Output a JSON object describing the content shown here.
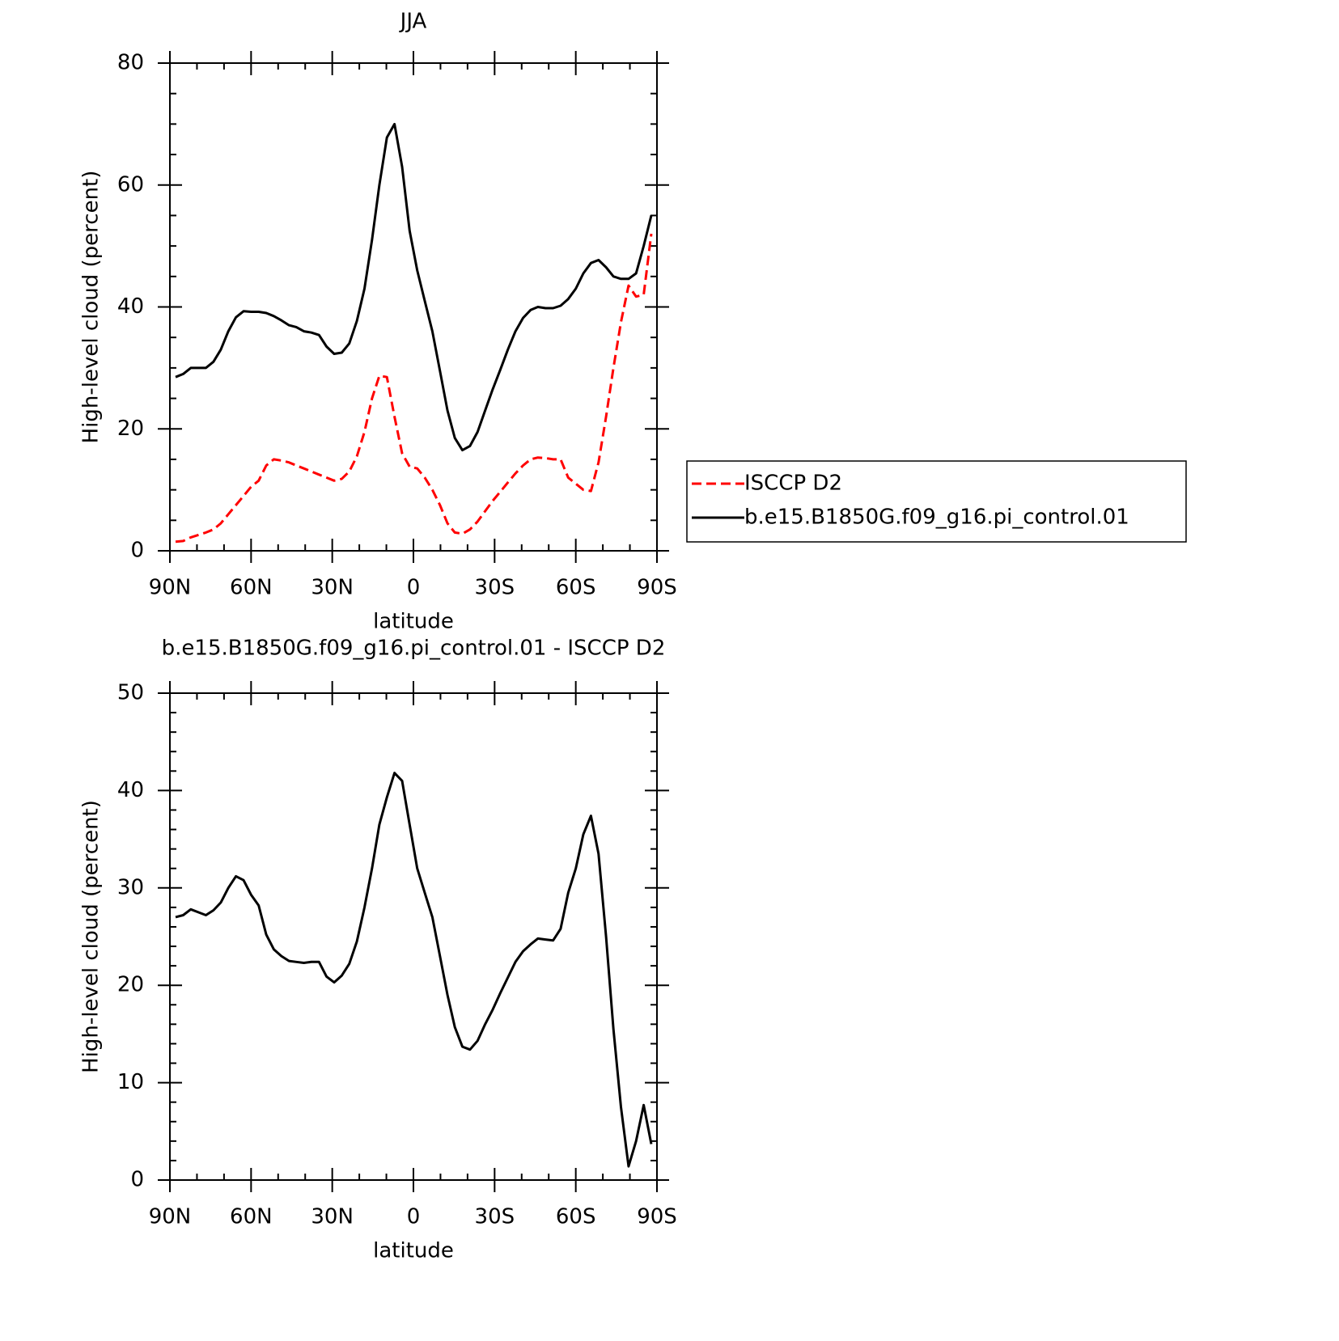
{
  "chart_data": [
    {
      "type": "line",
      "title": "JJA",
      "xlabel": "latitude",
      "ylabel": "High-level cloud (percent)",
      "x": [
        87.9,
        85.1,
        82.3,
        79.5,
        76.7,
        73.9,
        71.2,
        68.4,
        65.6,
        62.8,
        60.0,
        57.2,
        54.4,
        51.6,
        48.8,
        46.0,
        43.3,
        40.5,
        37.7,
        34.9,
        32.1,
        29.3,
        26.5,
        23.7,
        20.9,
        18.1,
        15.3,
        12.6,
        9.8,
        7.0,
        4.2,
        1.4,
        -1.4,
        -4.2,
        -7.0,
        -9.8,
        -12.6,
        -15.3,
        -18.1,
        -20.9,
        -23.7,
        -26.5,
        -29.3,
        -32.1,
        -34.9,
        -37.7,
        -40.5,
        -43.3,
        -46.0,
        -48.8,
        -51.6,
        -54.4,
        -57.2,
        -60.0,
        -62.8,
        -65.6,
        -68.4,
        -71.2,
        -73.9,
        -76.7,
        -79.5,
        -82.3,
        -85.1,
        -87.9
      ],
      "series": [
        {
          "name": "ISCCP D2",
          "color": "#ff0000",
          "style": "dashed",
          "values": [
            1.5,
            1.6,
            2.2,
            2.6,
            3,
            3.5,
            4.5,
            6,
            7.5,
            9,
            10.5,
            11.5,
            14,
            15,
            14.8,
            14.5,
            14,
            13.5,
            13,
            12.5,
            12,
            11.5,
            11.8,
            13,
            15.5,
            19.5,
            25,
            28.7,
            28.5,
            22,
            16,
            13.8,
            13.5,
            12,
            10,
            7.5,
            4.5,
            3,
            2.8,
            3.5,
            4.8,
            6.5,
            8.2,
            9.7,
            11.2,
            12.7,
            14,
            15,
            15.3,
            15.2,
            15,
            15,
            12,
            11,
            10,
            9.8,
            14.5,
            22,
            30,
            37.5,
            43.5,
            41.7,
            42,
            52
          ]
        },
        {
          "name": "b.e15.B1850G.f09_g16.pi_control.01",
          "color": "#000000",
          "style": "solid",
          "values": [
            28.5,
            29,
            30,
            30,
            30,
            31,
            33,
            36,
            38.3,
            39.3,
            39.2,
            39.2,
            39,
            38.5,
            37.8,
            37,
            36.7,
            36,
            35.8,
            35.4,
            33.5,
            32.3,
            32.5,
            34,
            37.7,
            43,
            51,
            60,
            67.8,
            70,
            63,
            52.5,
            46,
            41,
            36,
            29.5,
            23,
            18.5,
            16.5,
            17.2,
            19.5,
            23,
            26.5,
            29.7,
            33,
            36,
            38.2,
            39.5,
            40,
            39.8,
            39.8,
            40.2,
            41.3,
            43,
            45.5,
            47.2,
            47.7,
            46.5,
            45,
            44.6,
            44.6,
            45.5,
            50,
            55
          ]
        }
      ],
      "xlim": [
        90,
        -90
      ],
      "xticks": [
        {
          "value": 90,
          "label": "90N"
        },
        {
          "value": 60,
          "label": "60N"
        },
        {
          "value": 30,
          "label": "30N"
        },
        0,
        {
          "value": -30,
          "label": "30S"
        },
        {
          "value": -60,
          "label": "60S"
        },
        {
          "value": -90,
          "label": "90S"
        }
      ],
      "ylim": [
        0,
        80
      ],
      "yticks": [
        0,
        20,
        40,
        60,
        80
      ],
      "legend": "right"
    },
    {
      "type": "line",
      "title": "b.e15.B1850G.f09_g16.pi_control.01 - ISCCP D2",
      "xlabel": "latitude",
      "ylabel": "High-level cloud (percent)",
      "x": [
        87.9,
        85.1,
        82.3,
        79.5,
        76.7,
        73.9,
        71.2,
        68.4,
        65.6,
        62.8,
        60.0,
        57.2,
        54.4,
        51.6,
        48.8,
        46.0,
        43.3,
        40.5,
        37.7,
        34.9,
        32.1,
        29.3,
        26.5,
        23.7,
        20.9,
        18.1,
        15.3,
        12.6,
        9.8,
        7.0,
        4.2,
        1.4,
        -1.4,
        -4.2,
        -7.0,
        -9.8,
        -12.6,
        -15.3,
        -18.1,
        -20.9,
        -23.7,
        -26.5,
        -29.3,
        -32.1,
        -34.9,
        -37.7,
        -40.5,
        -43.3,
        -46.0,
        -48.8,
        -51.6,
        -54.4,
        -57.2,
        -60.0,
        -62.8,
        -65.6,
        -68.4,
        -71.2,
        -73.9,
        -76.7,
        -79.5,
        -82.3,
        -85.1,
        -87.9
      ],
      "color": "#000000",
      "values": [
        27,
        27.2,
        27.8,
        27.5,
        27.2,
        27.7,
        28.5,
        30,
        31.2,
        30.8,
        29.3,
        28.2,
        25.2,
        23.7,
        23,
        22.5,
        22.4,
        22.3,
        22.4,
        22.4,
        20.9,
        20.3,
        21,
        22.2,
        24.5,
        28,
        32,
        36.5,
        39.3,
        41.8,
        41,
        36.5,
        32,
        29.5,
        27,
        23,
        19,
        15.7,
        13.7,
        13.4,
        14.3,
        16,
        17.5,
        19.2,
        20.8,
        22.4,
        23.5,
        24.2,
        24.8,
        24.7,
        24.6,
        25.8,
        29.5,
        32,
        35.5,
        37.4,
        33.5,
        25,
        15.5,
        7.5,
        1.4,
        4,
        7.7,
        3.7
      ],
      "xlim": [
        90,
        -90
      ],
      "xticks": [
        {
          "value": 90,
          "label": "90N"
        },
        {
          "value": 60,
          "label": "60N"
        },
        {
          "value": 30,
          "label": "30N"
        },
        0,
        {
          "value": -30,
          "label": "30S"
        },
        {
          "value": -60,
          "label": "60S"
        },
        {
          "value": -90,
          "label": "90S"
        }
      ],
      "ylim": [
        0,
        50
      ],
      "yticks": [
        0,
        10,
        20,
        30,
        40,
        50
      ]
    }
  ]
}
